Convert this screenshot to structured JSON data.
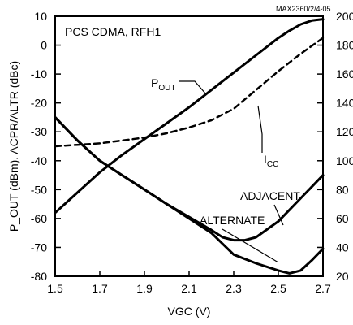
{
  "chart_data": {
    "type": "line",
    "title": "PCS CDMA, RFH1",
    "note": "MAX2360/2/4-05",
    "xlabel": "VGC (V)",
    "ylabel_left": "P_OUT (dBm), ACPR/ALTR (dBc)",
    "xlim": [
      1.5,
      2.7
    ],
    "ylim_left": [
      -80,
      10
    ],
    "ylim_right": [
      20,
      200
    ],
    "x_ticks": [
      1.5,
      1.7,
      1.9,
      2.1,
      2.3,
      2.5,
      2.7
    ],
    "x_tick_labels": [
      "1.5",
      "1.7",
      "1.9",
      "2.1",
      "2.3",
      "2.5",
      "2.7"
    ],
    "y_left_ticks": [
      10,
      0,
      -10,
      -20,
      -30,
      -40,
      -50,
      -60,
      -70,
      -80
    ],
    "y_left_tick_labels": [
      "10",
      "0",
      "-10",
      "-20",
      "-30",
      "-40",
      "-50",
      "-60",
      "-70",
      "-80"
    ],
    "y_right_ticks": [
      200,
      180,
      160,
      140,
      120,
      100,
      80,
      60,
      40,
      20
    ],
    "y_right_tick_labels": [
      "200",
      "180",
      "160",
      "140",
      "120",
      "100",
      "80",
      "60",
      "40",
      "20"
    ],
    "grid": false,
    "series": [
      {
        "key": "pout",
        "label_main": "P",
        "label_sub": "OUT",
        "axis": "left",
        "style": "solid",
        "points": [
          [
            1.5,
            -58
          ],
          [
            1.6,
            -51
          ],
          [
            1.7,
            -44
          ],
          [
            1.8,
            -38
          ],
          [
            1.9,
            -32.5
          ],
          [
            2.0,
            -27
          ],
          [
            2.1,
            -21.5
          ],
          [
            2.2,
            -15.5
          ],
          [
            2.3,
            -9.5
          ],
          [
            2.4,
            -3.5
          ],
          [
            2.5,
            2.5
          ],
          [
            2.55,
            5
          ],
          [
            2.6,
            7.2
          ],
          [
            2.65,
            8.5
          ],
          [
            2.7,
            9
          ]
        ]
      },
      {
        "key": "icc",
        "label_main": "I",
        "label_sub": "CC",
        "axis": "right",
        "style": "dashed",
        "points": [
          [
            1.5,
            110
          ],
          [
            1.6,
            111
          ],
          [
            1.7,
            112
          ],
          [
            1.8,
            114
          ],
          [
            1.9,
            116
          ],
          [
            2.0,
            119
          ],
          [
            2.1,
            123
          ],
          [
            2.2,
            128
          ],
          [
            2.3,
            136
          ],
          [
            2.4,
            149
          ],
          [
            2.5,
            162
          ],
          [
            2.6,
            174
          ],
          [
            2.7,
            185
          ]
        ]
      },
      {
        "key": "adjacent",
        "label_main": "ADJACENT",
        "axis": "left",
        "style": "solid",
        "points": [
          [
            1.5,
            -25
          ],
          [
            1.6,
            -33
          ],
          [
            1.7,
            -40
          ],
          [
            1.8,
            -45
          ],
          [
            1.9,
            -50
          ],
          [
            2.0,
            -55
          ],
          [
            2.1,
            -59.5
          ],
          [
            2.2,
            -64
          ],
          [
            2.25,
            -66.5
          ],
          [
            2.3,
            -67.5
          ],
          [
            2.35,
            -67.5
          ],
          [
            2.4,
            -66.5
          ],
          [
            2.5,
            -61
          ],
          [
            2.6,
            -53
          ],
          [
            2.7,
            -45
          ]
        ]
      },
      {
        "key": "alternate",
        "label_main": "ALTERNATE",
        "axis": "left",
        "style": "solid",
        "points": [
          [
            1.5,
            -25
          ],
          [
            1.6,
            -33
          ],
          [
            1.7,
            -40
          ],
          [
            1.8,
            -45
          ],
          [
            1.9,
            -50
          ],
          [
            2.0,
            -55
          ],
          [
            2.1,
            -60
          ],
          [
            2.2,
            -65
          ],
          [
            2.3,
            -72.5
          ],
          [
            2.4,
            -75.5
          ],
          [
            2.5,
            -78
          ],
          [
            2.55,
            -79
          ],
          [
            2.6,
            -78
          ],
          [
            2.65,
            -74.5
          ],
          [
            2.7,
            -70.5
          ]
        ]
      }
    ]
  }
}
